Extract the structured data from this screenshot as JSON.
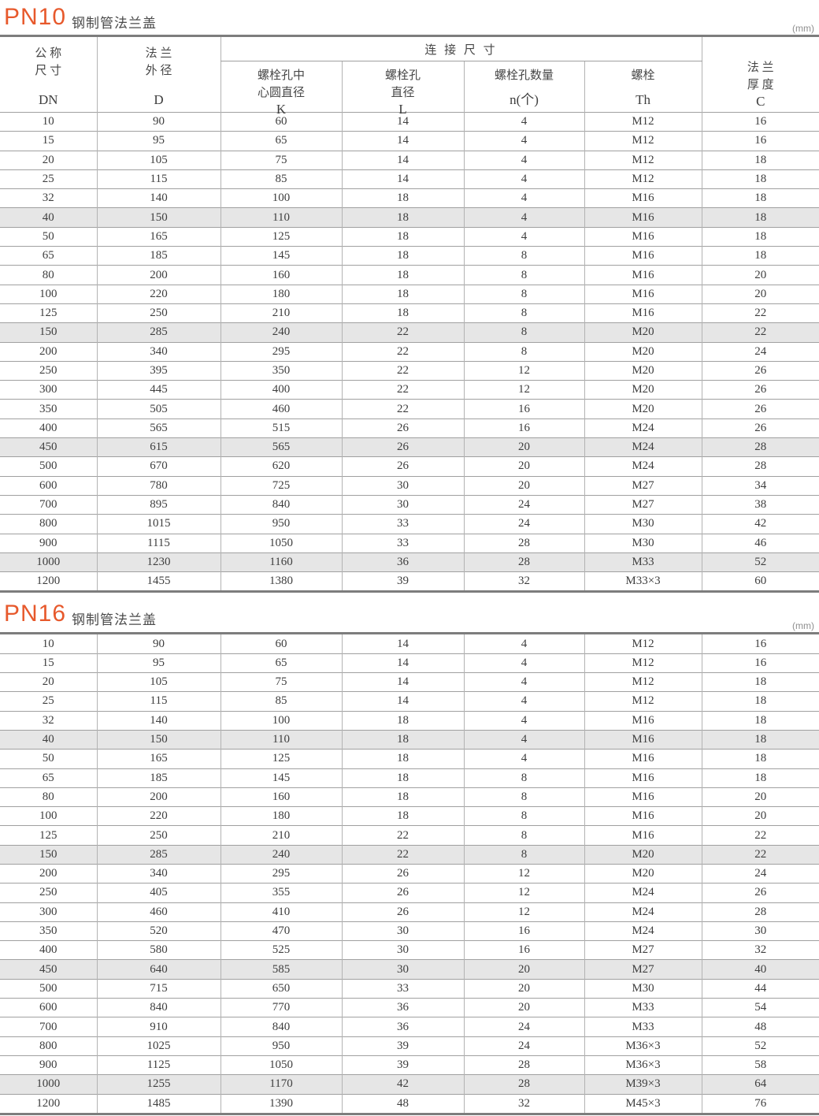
{
  "page": {
    "accent_color": "#e7592c",
    "shade_color": "#e6e6e6",
    "sections": [
      {
        "title": "PN10",
        "subtitle": "钢制管法兰盖",
        "unit": "(mm)"
      },
      {
        "title": "PN16",
        "subtitle": "钢制管法兰盖",
        "unit": "(mm)"
      }
    ]
  },
  "header": {
    "group_label": "连 接 尺 寸",
    "columns": [
      {
        "line1": "公 称",
        "line2": "尺 寸",
        "code": "DN"
      },
      {
        "line1": "法 兰",
        "line2": "外 径",
        "code": "D"
      },
      {
        "line1": "螺栓孔中",
        "line2": "心圆直径",
        "code": "K"
      },
      {
        "line1": "螺栓孔",
        "line2": "直径",
        "code": "L"
      },
      {
        "line1": "螺栓孔数量",
        "code": "n(个)"
      },
      {
        "line1": "螺栓",
        "code": "Th"
      },
      {
        "line1": "法 兰",
        "line2": "厚 度",
        "code": "C"
      }
    ]
  },
  "tables": {
    "pn10": {
      "shaded_rows": [
        5,
        11,
        17,
        23
      ],
      "rows": [
        [
          "10",
          "90",
          "60",
          "14",
          "4",
          "M12",
          "16"
        ],
        [
          "15",
          "95",
          "65",
          "14",
          "4",
          "M12",
          "16"
        ],
        [
          "20",
          "105",
          "75",
          "14",
          "4",
          "M12",
          "18"
        ],
        [
          "25",
          "115",
          "85",
          "14",
          "4",
          "M12",
          "18"
        ],
        [
          "32",
          "140",
          "100",
          "18",
          "4",
          "M16",
          "18"
        ],
        [
          "40",
          "150",
          "110",
          "18",
          "4",
          "M16",
          "18"
        ],
        [
          "50",
          "165",
          "125",
          "18",
          "4",
          "M16",
          "18"
        ],
        [
          "65",
          "185",
          "145",
          "18",
          "8",
          "M16",
          "18"
        ],
        [
          "80",
          "200",
          "160",
          "18",
          "8",
          "M16",
          "20"
        ],
        [
          "100",
          "220",
          "180",
          "18",
          "8",
          "M16",
          "20"
        ],
        [
          "125",
          "250",
          "210",
          "18",
          "8",
          "M16",
          "22"
        ],
        [
          "150",
          "285",
          "240",
          "22",
          "8",
          "M20",
          "22"
        ],
        [
          "200",
          "340",
          "295",
          "22",
          "8",
          "M20",
          "24"
        ],
        [
          "250",
          "395",
          "350",
          "22",
          "12",
          "M20",
          "26"
        ],
        [
          "300",
          "445",
          "400",
          "22",
          "12",
          "M20",
          "26"
        ],
        [
          "350",
          "505",
          "460",
          "22",
          "16",
          "M20",
          "26"
        ],
        [
          "400",
          "565",
          "515",
          "26",
          "16",
          "M24",
          "26"
        ],
        [
          "450",
          "615",
          "565",
          "26",
          "20",
          "M24",
          "28"
        ],
        [
          "500",
          "670",
          "620",
          "26",
          "20",
          "M24",
          "28"
        ],
        [
          "600",
          "780",
          "725",
          "30",
          "20",
          "M27",
          "34"
        ],
        [
          "700",
          "895",
          "840",
          "30",
          "24",
          "M27",
          "38"
        ],
        [
          "800",
          "1015",
          "950",
          "33",
          "24",
          "M30",
          "42"
        ],
        [
          "900",
          "1115",
          "1050",
          "33",
          "28",
          "M30",
          "46"
        ],
        [
          "1000",
          "1230",
          "1160",
          "36",
          "28",
          "M33",
          "52"
        ],
        [
          "1200",
          "1455",
          "1380",
          "39",
          "32",
          "M33×3",
          "60"
        ]
      ]
    },
    "pn16": {
      "shaded_rows": [
        5,
        11,
        17,
        23
      ],
      "rows": [
        [
          "10",
          "90",
          "60",
          "14",
          "4",
          "M12",
          "16"
        ],
        [
          "15",
          "95",
          "65",
          "14",
          "4",
          "M12",
          "16"
        ],
        [
          "20",
          "105",
          "75",
          "14",
          "4",
          "M12",
          "18"
        ],
        [
          "25",
          "115",
          "85",
          "14",
          "4",
          "M12",
          "18"
        ],
        [
          "32",
          "140",
          "100",
          "18",
          "4",
          "M16",
          "18"
        ],
        [
          "40",
          "150",
          "110",
          "18",
          "4",
          "M16",
          "18"
        ],
        [
          "50",
          "165",
          "125",
          "18",
          "4",
          "M16",
          "18"
        ],
        [
          "65",
          "185",
          "145",
          "18",
          "8",
          "M16",
          "18"
        ],
        [
          "80",
          "200",
          "160",
          "18",
          "8",
          "M16",
          "20"
        ],
        [
          "100",
          "220",
          "180",
          "18",
          "8",
          "M16",
          "20"
        ],
        [
          "125",
          "250",
          "210",
          "22",
          "8",
          "M16",
          "22"
        ],
        [
          "150",
          "285",
          "240",
          "22",
          "8",
          "M20",
          "22"
        ],
        [
          "200",
          "340",
          "295",
          "26",
          "12",
          "M20",
          "24"
        ],
        [
          "250",
          "405",
          "355",
          "26",
          "12",
          "M24",
          "26"
        ],
        [
          "300",
          "460",
          "410",
          "26",
          "12",
          "M24",
          "28"
        ],
        [
          "350",
          "520",
          "470",
          "30",
          "16",
          "M24",
          "30"
        ],
        [
          "400",
          "580",
          "525",
          "30",
          "16",
          "M27",
          "32"
        ],
        [
          "450",
          "640",
          "585",
          "30",
          "20",
          "M27",
          "40"
        ],
        [
          "500",
          "715",
          "650",
          "33",
          "20",
          "M30",
          "44"
        ],
        [
          "600",
          "840",
          "770",
          "36",
          "20",
          "M33",
          "54"
        ],
        [
          "700",
          "910",
          "840",
          "36",
          "24",
          "M33",
          "48"
        ],
        [
          "800",
          "1025",
          "950",
          "39",
          "24",
          "M36×3",
          "52"
        ],
        [
          "900",
          "1125",
          "1050",
          "39",
          "28",
          "M36×3",
          "58"
        ],
        [
          "1000",
          "1255",
          "1170",
          "42",
          "28",
          "M39×3",
          "64"
        ],
        [
          "1200",
          "1485",
          "1390",
          "48",
          "32",
          "M45×3",
          "76"
        ]
      ]
    }
  }
}
